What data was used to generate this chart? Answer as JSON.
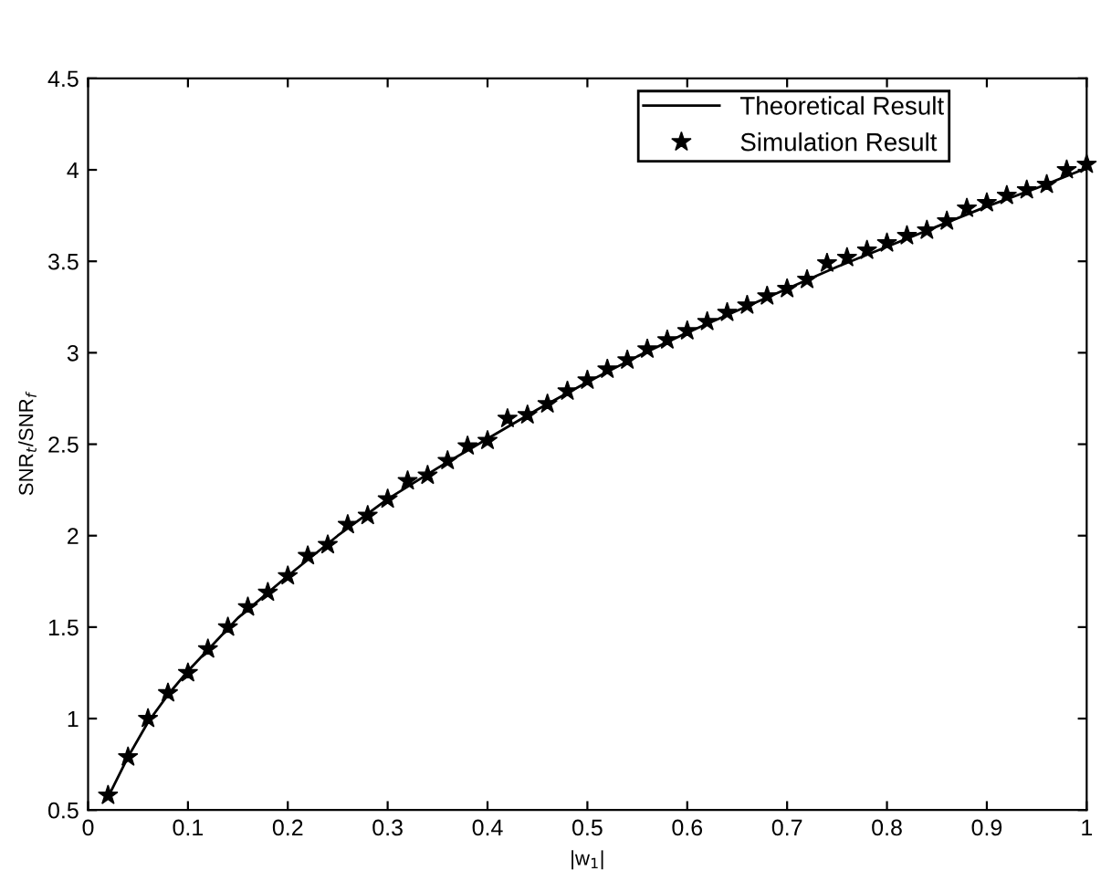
{
  "chart_data": {
    "type": "line",
    "xlabel": "|w$_{1}$|",
    "ylabel": "SNR$_{t}$/SNR$_{f}$",
    "xlim": [
      0,
      1
    ],
    "ylim": [
      0.5,
      4.5
    ],
    "xticks": [
      0,
      0.1,
      0.2,
      0.3,
      0.4,
      0.5,
      0.6,
      0.7,
      0.8,
      0.9,
      1
    ],
    "yticks": [
      0.5,
      1,
      1.5,
      2,
      2.5,
      3,
      3.5,
      4,
      4.5
    ],
    "grid": false,
    "legend": "top right",
    "series": [
      {
        "name": "Theoretical Result",
        "color": "#000000",
        "marker": "none",
        "line_style": "solid",
        "x": [
          0.02,
          0.04,
          0.06,
          0.08,
          0.1,
          0.15,
          0.2,
          0.25,
          0.3,
          0.35,
          0.4,
          0.45,
          0.5,
          0.55,
          0.6,
          0.65,
          0.7,
          0.75,
          0.8,
          0.85,
          0.9,
          0.95,
          1.0
        ],
        "values": [
          0.57,
          0.79,
          0.98,
          1.13,
          1.26,
          1.55,
          1.78,
          2.0,
          2.2,
          2.37,
          2.53,
          2.69,
          2.84,
          2.98,
          3.11,
          3.23,
          3.35,
          3.47,
          3.58,
          3.69,
          3.8,
          3.9,
          4.01
        ]
      },
      {
        "name": "Simulation Result",
        "type": "scatter",
        "color": "#000000",
        "marker": "star",
        "x": [
          0.02,
          0.04,
          0.06,
          0.08,
          0.1,
          0.12,
          0.14,
          0.16,
          0.18,
          0.2,
          0.22,
          0.24,
          0.26,
          0.28,
          0.3,
          0.32,
          0.34,
          0.36,
          0.38,
          0.4,
          0.42,
          0.44,
          0.46,
          0.48,
          0.5,
          0.52,
          0.54,
          0.56,
          0.58,
          0.6,
          0.62,
          0.64,
          0.66,
          0.68,
          0.7,
          0.72,
          0.74,
          0.76,
          0.78,
          0.8,
          0.82,
          0.84,
          0.86,
          0.88,
          0.9,
          0.92,
          0.94,
          0.96,
          0.98,
          1.0
        ],
        "values": [
          0.58,
          0.79,
          1.0,
          1.14,
          1.25,
          1.38,
          1.5,
          1.61,
          1.69,
          1.78,
          1.89,
          1.95,
          2.06,
          2.11,
          2.2,
          2.3,
          2.33,
          2.41,
          2.49,
          2.52,
          2.64,
          2.66,
          2.72,
          2.79,
          2.85,
          2.91,
          2.96,
          3.02,
          3.07,
          3.12,
          3.17,
          3.22,
          3.26,
          3.31,
          3.35,
          3.4,
          3.49,
          3.52,
          3.56,
          3.6,
          3.64,
          3.67,
          3.72,
          3.79,
          3.82,
          3.86,
          3.89,
          3.92,
          4.0,
          4.03
        ]
      }
    ]
  }
}
